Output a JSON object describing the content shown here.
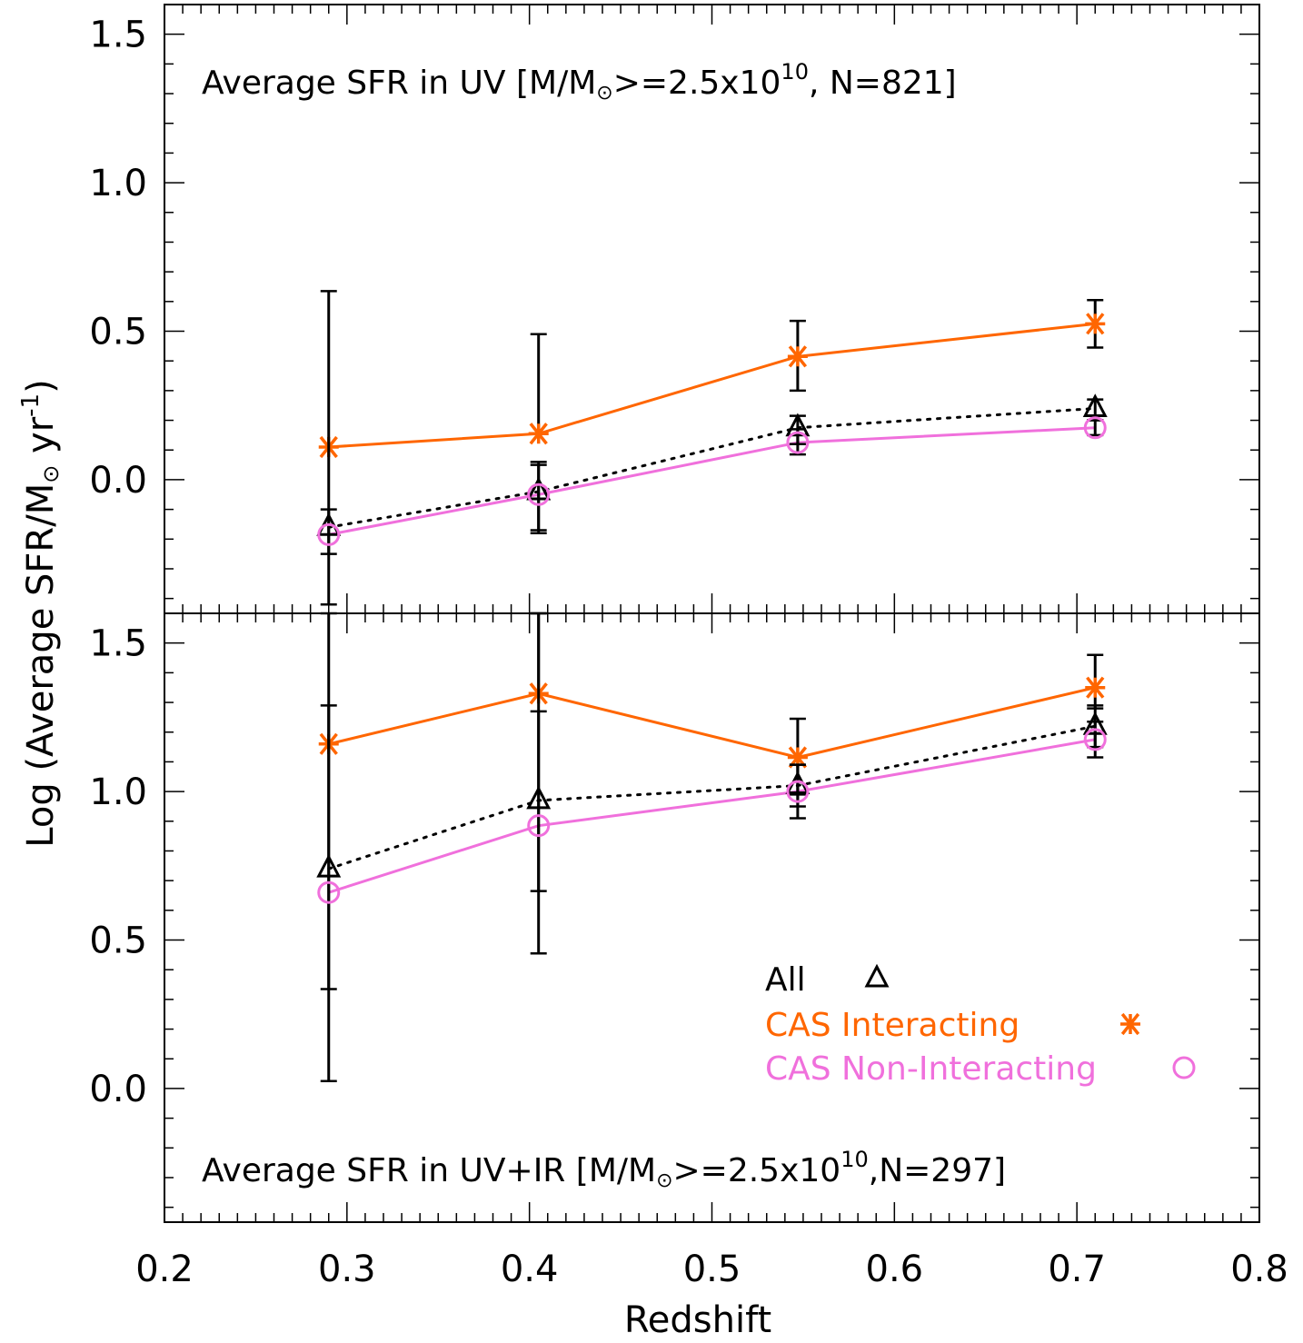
{
  "chart_data": [
    {
      "type": "line",
      "panel": "top",
      "title_parts": [
        "Average SFR in UV [M/M",
        ">=2.5x10",
        "10",
        ", N=821]"
      ],
      "xlabel": "Redshift",
      "ylabel_parts": [
        "Log (Average SFR/M",
        " yr",
        "-1",
        ")"
      ],
      "xlim": [
        0.2,
        0.8
      ],
      "ylim": [
        -0.45,
        1.6
      ],
      "yticks": [
        "0.0",
        "0.5",
        "1.0",
        "1.5"
      ],
      "series": [
        {
          "name": "CAS Interacting",
          "color": "#ff6600",
          "marker": "asterisk",
          "line": "solid",
          "x": [
            0.29,
            0.405,
            0.547,
            0.71
          ],
          "y": [
            0.11,
            0.155,
            0.415,
            0.525
          ],
          "err_low": [
            0.11,
            0.155,
            0.3,
            0.445
          ],
          "err_high": [
            0.11,
            0.49,
            0.535,
            0.605
          ]
        },
        {
          "name": "All",
          "color": "#000000",
          "marker": "triangle",
          "line": "dotted",
          "x": [
            0.29,
            0.405,
            0.547,
            0.71
          ],
          "y": [
            -0.16,
            -0.04,
            0.175,
            0.24
          ],
          "err_low": [
            -0.42,
            -0.18,
            0.12,
            0.2
          ],
          "err_high": [
            0.635,
            0.05,
            0.215,
            0.27
          ]
        },
        {
          "name": "CAS Non-Interacting",
          "color": "#f070dc",
          "marker": "circle",
          "line": "solid",
          "x": [
            0.29,
            0.405,
            0.547,
            0.71
          ],
          "y": [
            -0.185,
            -0.05,
            0.125,
            0.175
          ],
          "err_low": [
            -0.25,
            -0.17,
            0.085,
            0.15
          ],
          "err_high": [
            -0.1,
            0.06,
            0.17,
            0.2
          ]
        }
      ]
    },
    {
      "type": "line",
      "panel": "bottom",
      "title_parts": [
        "Average SFR in UV+IR  [M/M",
        ">=2.5x10",
        "10",
        ",N=297]"
      ],
      "xlabel": "Redshift",
      "xlim": [
        0.2,
        0.8
      ],
      "ylim": [
        -0.45,
        1.6
      ],
      "xticks": [
        "0.2",
        "0.3",
        "0.4",
        "0.5",
        "0.6",
        "0.7",
        "0.8"
      ],
      "yticks": [
        "0.0",
        "0.5",
        "1.0",
        "1.5"
      ],
      "legend": [
        {
          "label": "All",
          "color": "#000000",
          "marker": "triangle"
        },
        {
          "label": "CAS Interacting",
          "color": "#ff6600",
          "marker": "asterisk"
        },
        {
          "label": "CAS Non-Interacting",
          "color": "#f070dc",
          "marker": "circle"
        }
      ],
      "series": [
        {
          "name": "CAS Interacting",
          "color": "#ff6600",
          "marker": "asterisk",
          "line": "solid",
          "x": [
            0.29,
            0.405,
            0.547,
            0.71
          ],
          "y": [
            1.16,
            1.33,
            1.115,
            1.35
          ],
          "err_low": [
            1.16,
            1.33,
            0.99,
            1.28
          ],
          "err_high": [
            1.16,
            1.6,
            1.245,
            1.46
          ]
        },
        {
          "name": "All",
          "color": "#000000",
          "marker": "triangle",
          "line": "dotted",
          "x": [
            0.29,
            0.405,
            0.547,
            0.71
          ],
          "y": [
            0.74,
            0.97,
            1.02,
            1.22
          ],
          "err_low": [
            0.335,
            0.665,
            0.95,
            1.15
          ],
          "err_high": [
            1.6,
            1.6,
            1.09,
            1.29
          ]
        },
        {
          "name": "CAS Non-Interacting",
          "color": "#f070dc",
          "marker": "circle",
          "line": "solid",
          "x": [
            0.29,
            0.405,
            0.547,
            0.71
          ],
          "y": [
            0.66,
            0.885,
            1.0,
            1.175
          ],
          "err_low": [
            0.025,
            0.455,
            0.91,
            1.115
          ],
          "err_high": [
            1.29,
            1.27,
            1.09,
            1.235
          ]
        }
      ]
    }
  ]
}
